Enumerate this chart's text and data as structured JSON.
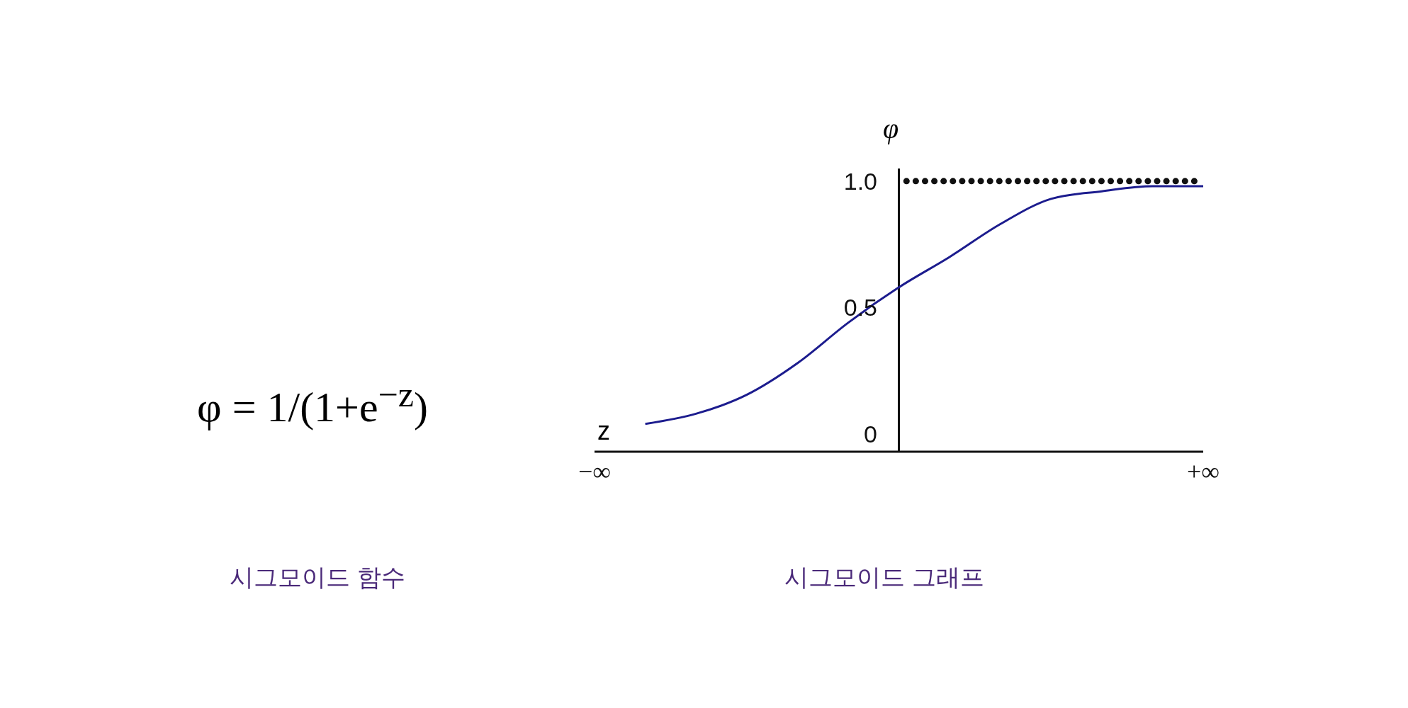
{
  "chart_data": {
    "type": "line",
    "xlabel": "z",
    "ylabel": "φ",
    "categories": [
      "−∞",
      null,
      null,
      null,
      null,
      null,
      null,
      null,
      null,
      null,
      null,
      null,
      "+∞"
    ],
    "series": [
      {
        "color": "#1c1c8e",
        "values": [
          null,
          0.04,
          0.08,
          0.155,
          0.28,
          0.44,
          0.58,
          0.7,
          0.83,
          0.93,
          0.96,
          0.98,
          0.98
        ]
      }
    ],
    "ylim": [
      -0.07,
      1.05
    ],
    "yticks": [
      0,
      0.5,
      {
        "value": 1,
        "label": "1.0"
      }
    ],
    "ref_lines": [
      {
        "axis": "y",
        "value": 1,
        "color": "#111111",
        "line_style": "dotted"
      }
    ],
    "grid": false,
    "legend": false,
    "marker": "none",
    "line_style": "solid",
    "annotations": [
      "φ = 1/(1+e$^{−z}$)",
      "시그모이드 함수",
      "시그모이드 그래프"
    ]
  }
}
